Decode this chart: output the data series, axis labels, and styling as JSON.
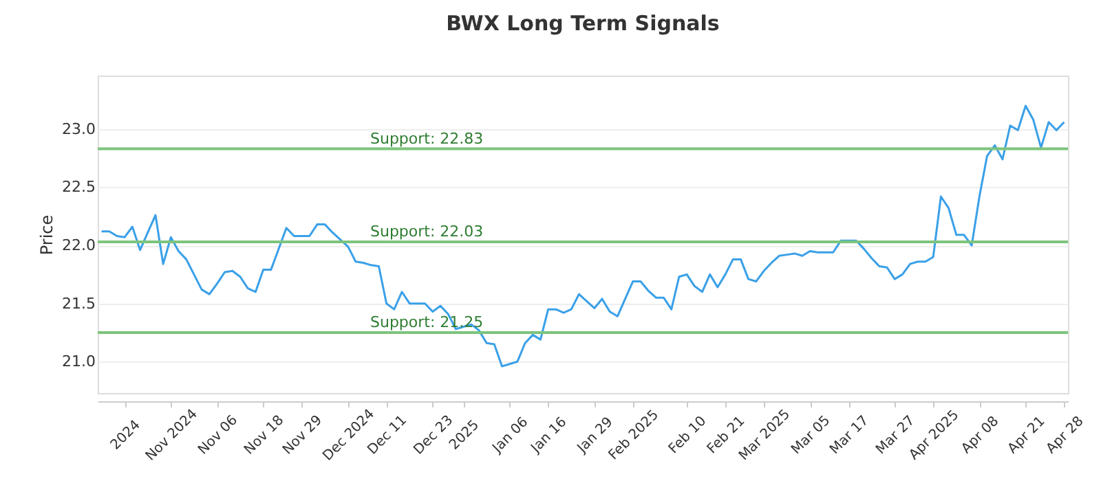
{
  "chart_data": {
    "type": "line",
    "title": "BWX Long Term Signals",
    "ylabel": "Price",
    "categories": [
      null,
      null,
      null,
      "2024",
      null,
      null,
      null,
      null,
      null,
      "Nov 2024",
      null,
      null,
      null,
      null,
      null,
      "Nov 06",
      null,
      null,
      null,
      null,
      null,
      "Nov 18",
      null,
      null,
      null,
      null,
      "Nov 29",
      null,
      null,
      null,
      null,
      null,
      "Dec 2024",
      null,
      null,
      null,
      null,
      "Dec 11",
      null,
      null,
      null,
      null,
      null,
      "Dec 23",
      null,
      null,
      null,
      "2025",
      null,
      null,
      null,
      null,
      null,
      "Jan 06",
      null,
      null,
      null,
      null,
      "Jan 16",
      null,
      null,
      null,
      null,
      null,
      "Jan 29",
      null,
      null,
      null,
      null,
      "Feb 2025",
      null,
      null,
      null,
      null,
      null,
      null,
      "Feb 10",
      null,
      null,
      null,
      null,
      "Feb 21",
      null,
      null,
      null,
      null,
      "Mar 2025",
      null,
      null,
      null,
      null,
      null,
      "Mar 05",
      null,
      null,
      null,
      null,
      "Mar 17",
      null,
      null,
      null,
      null,
      null,
      "Mar 27",
      null,
      null,
      null,
      null,
      "Apr 2025",
      null,
      null,
      null,
      null,
      null,
      "Apr 08",
      null,
      null,
      null,
      null,
      null,
      "Apr 21",
      null,
      null,
      null,
      null,
      "Apr 28"
    ],
    "series": [
      {
        "color": "#3aa0e8",
        "values": [
          22.12,
          22.12,
          22.08,
          22.07,
          22.16,
          21.96,
          22.11,
          22.26,
          21.84,
          22.07,
          21.95,
          21.88,
          21.75,
          21.62,
          21.58,
          21.67,
          21.77,
          21.78,
          21.73,
          21.63,
          21.6,
          21.79,
          21.79,
          21.97,
          22.15,
          22.08,
          22.08,
          22.08,
          22.18,
          22.18,
          22.11,
          22.05,
          21.99,
          21.86,
          21.85,
          21.83,
          21.82,
          21.5,
          21.45,
          21.6,
          21.5,
          21.5,
          21.5,
          21.43,
          21.48,
          21.41,
          21.28,
          21.3,
          21.32,
          21.27,
          21.16,
          21.15,
          20.96,
          20.98,
          21.0,
          21.16,
          21.23,
          21.19,
          21.45,
          21.45,
          21.42,
          21.45,
          21.58,
          21.52,
          21.46,
          21.54,
          21.43,
          21.39,
          21.54,
          21.69,
          21.69,
          21.61,
          21.55,
          21.55,
          21.45,
          21.73,
          21.75,
          21.65,
          21.6,
          21.75,
          21.64,
          21.75,
          21.88,
          21.88,
          21.71,
          21.69,
          21.78,
          21.85,
          21.91,
          21.92,
          21.93,
          21.91,
          21.95,
          21.94,
          21.94,
          21.94,
          22.04,
          22.04,
          22.04,
          21.97,
          21.89,
          21.82,
          21.81,
          21.71,
          21.75,
          21.84,
          21.86,
          21.86,
          21.9,
          22.42,
          22.32,
          22.09,
          22.09,
          22.0,
          22.42,
          22.77,
          22.86,
          22.74,
          23.03,
          22.99,
          23.2,
          23.08,
          22.84,
          23.06,
          22.99,
          23.06
        ]
      }
    ],
    "ylim": [
      20.73,
      23.46
    ],
    "yticks": [
      {
        "value": 21,
        "label": "21.0"
      },
      21.5,
      {
        "value": 22,
        "label": "22.0"
      },
      22.5,
      {
        "value": 23,
        "label": "23.0"
      }
    ],
    "ref_lines": [
      {
        "axis": "y",
        "value": 22.83,
        "label": "Support: 22.83",
        "color": "#7dc47d"
      },
      {
        "axis": "y",
        "value": 22.03,
        "label": "Support: 22.03",
        "color": "#7dc47d"
      },
      {
        "axis": "y",
        "value": 21.25,
        "label": "Support: 21.25",
        "color": "#7dc47d"
      }
    ],
    "grid": "y",
    "marker": "none",
    "line_style": "solid"
  }
}
